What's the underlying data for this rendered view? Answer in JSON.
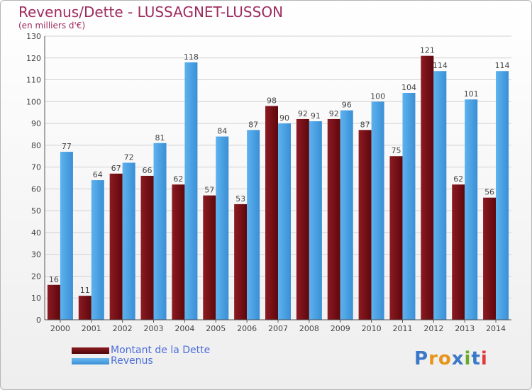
{
  "title": "Revenus/Dette - LUSSAGNET-LUSSON",
  "subtitle": "(en milliers d'€)",
  "colors": {
    "dette": "#7a0e14",
    "revenus": "#4aa2e6",
    "title": "#9e2a5e",
    "legend_text": "#4c6ed8"
  },
  "legend": {
    "position": "bottom-left",
    "items": [
      "Montant de la Dette",
      "Revenus"
    ]
  },
  "logo": {
    "text": "Proxiti",
    "letter_colors": [
      "#3a78c8",
      "#e8941a",
      "#e8941a",
      "#3a78c8",
      "#6aaa2a",
      "#3a78c8",
      "#e03a3a"
    ]
  },
  "chart_data": {
    "type": "bar",
    "title": "Revenus/Dette - LUSSAGNET-LUSSON",
    "subtitle": "(en milliers d'€)",
    "categories": [
      "2000",
      "2001",
      "2002",
      "2003",
      "2004",
      "2005",
      "2006",
      "2007",
      "2008",
      "2009",
      "2010",
      "2011",
      "2012",
      "2013",
      "2014"
    ],
    "series": [
      {
        "name": "Montant de la Dette",
        "values": [
          16,
          11,
          67,
          66,
          62,
          57,
          53,
          98,
          92,
          92,
          87,
          75,
          121,
          62,
          56
        ]
      },
      {
        "name": "Revenus",
        "values": [
          77,
          64,
          72,
          81,
          118,
          84,
          87,
          90,
          91,
          96,
          100,
          104,
          114,
          101,
          114
        ]
      }
    ],
    "ylim": [
      0,
      130
    ],
    "yticks": [
      0,
      10,
      20,
      30,
      40,
      50,
      60,
      70,
      80,
      90,
      100,
      110,
      120,
      130
    ],
    "grid": true,
    "legend_position": "bottom-left"
  }
}
